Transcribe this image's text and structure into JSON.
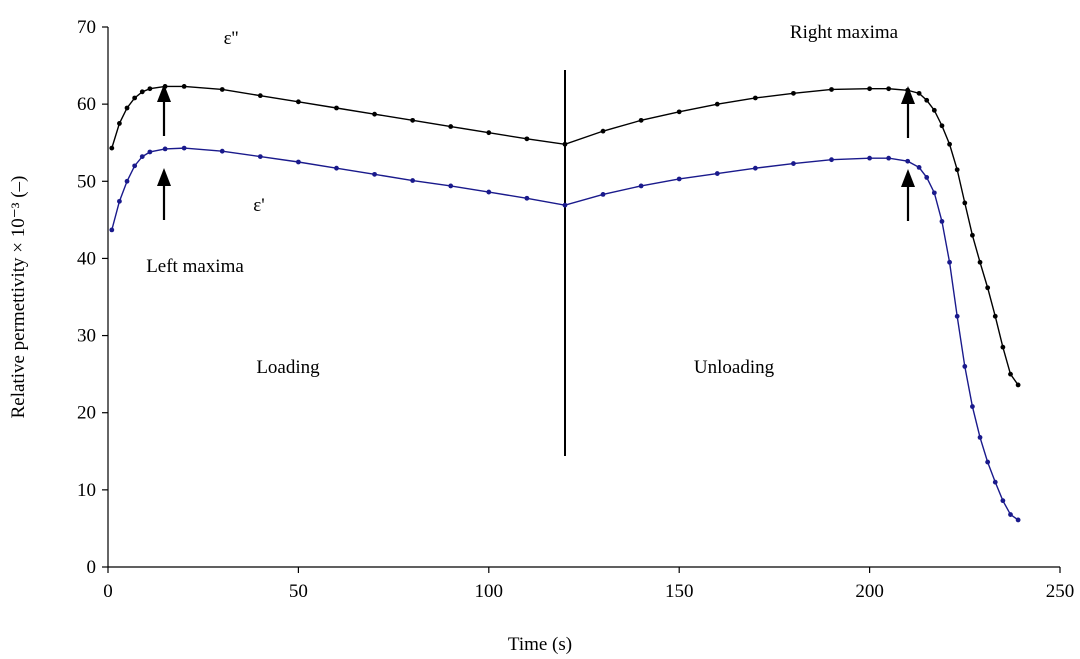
{
  "chart_data": {
    "type": "line",
    "x_label": "Time (s)",
    "y_label": "Relative permettivity × 10⁻³ (–)",
    "x": [
      1,
      3,
      5,
      7,
      9,
      11,
      15,
      20,
      30,
      40,
      50,
      60,
      70,
      80,
      90,
      100,
      110,
      120,
      130,
      140,
      150,
      160,
      170,
      180,
      190,
      200,
      205,
      210,
      213,
      215,
      217,
      219,
      221,
      223,
      225,
      227,
      229,
      231,
      233,
      235,
      237,
      239
    ],
    "series": [
      {
        "name": "ε''",
        "color": "#000000",
        "values": [
          54.3,
          57.5,
          59.5,
          60.8,
          61.6,
          62.0,
          62.3,
          62.3,
          61.9,
          61.1,
          60.3,
          59.5,
          58.7,
          57.9,
          57.1,
          56.3,
          55.5,
          54.8,
          56.5,
          57.9,
          59.0,
          60.0,
          60.8,
          61.4,
          61.9,
          62.0,
          62.0,
          61.8,
          61.4,
          60.5,
          59.2,
          57.2,
          54.8,
          51.5,
          47.2,
          43.0,
          39.5,
          36.2,
          32.5,
          28.5,
          25.0,
          23.6
        ]
      },
      {
        "name": "ε'",
        "color": "#1a1a8c",
        "values": [
          43.7,
          47.4,
          50.0,
          52.0,
          53.2,
          53.8,
          54.2,
          54.3,
          53.9,
          53.2,
          52.5,
          51.7,
          50.9,
          50.1,
          49.4,
          48.6,
          47.8,
          46.9,
          48.3,
          49.4,
          50.3,
          51.0,
          51.7,
          52.3,
          52.8,
          53.0,
          53.0,
          52.6,
          51.8,
          50.5,
          48.5,
          44.8,
          39.5,
          32.5,
          26.0,
          20.8,
          16.8,
          13.6,
          11.0,
          8.6,
          6.8,
          6.1
        ]
      }
    ],
    "annotations": [
      "Left maxima",
      "Right maxima",
      "Loading",
      "Unloading"
    ],
    "xlim": [
      0,
      250
    ],
    "xticks": [
      0,
      50,
      100,
      150,
      200,
      250
    ],
    "ylim": [
      0,
      70
    ],
    "yticks": [
      0,
      10,
      20,
      30,
      40,
      50,
      60,
      70
    ],
    "grid": false
  }
}
